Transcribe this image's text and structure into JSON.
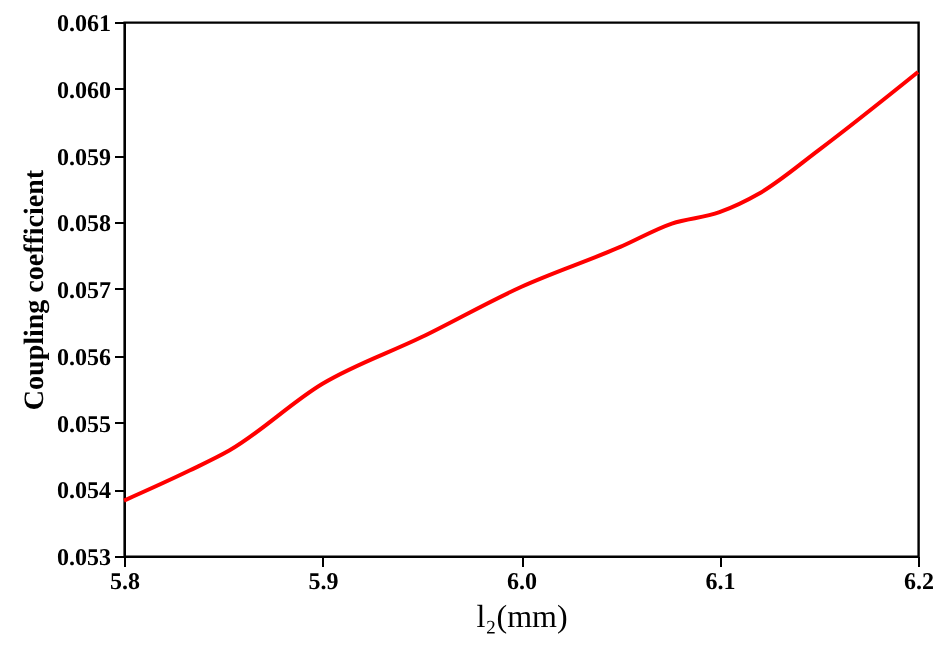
{
  "chart_data": {
    "type": "line",
    "xlabel": "l₂(mm)",
    "ylabel": "Coupling coefficient",
    "x": [
      5.8,
      5.833,
      5.853,
      5.9,
      5.95,
      6.0,
      6.05,
      6.076,
      6.1,
      6.12,
      6.15,
      6.2
    ],
    "series": [
      {
        "color": "#ff0000",
        "values": [
          0.05383,
          0.05428,
          0.05458,
          0.05558,
          0.05628,
          0.05703,
          0.05763,
          0.05798,
          0.05815,
          0.05843,
          0.05908,
          0.06025
        ]
      }
    ],
    "xlim": [
      5.8,
      6.2
    ],
    "xticks": [
      5.8,
      5.9,
      {
        "value": 6,
        "label": "6.0"
      },
      6.1,
      6.2
    ],
    "ylim": [
      0.053,
      0.061
    ],
    "yticks": [
      0.053,
      0.054,
      0.055,
      0.056,
      0.057,
      0.058,
      0.059,
      {
        "value": 0.06,
        "label": "0.060"
      },
      0.061
    ],
    "grid": false
  }
}
